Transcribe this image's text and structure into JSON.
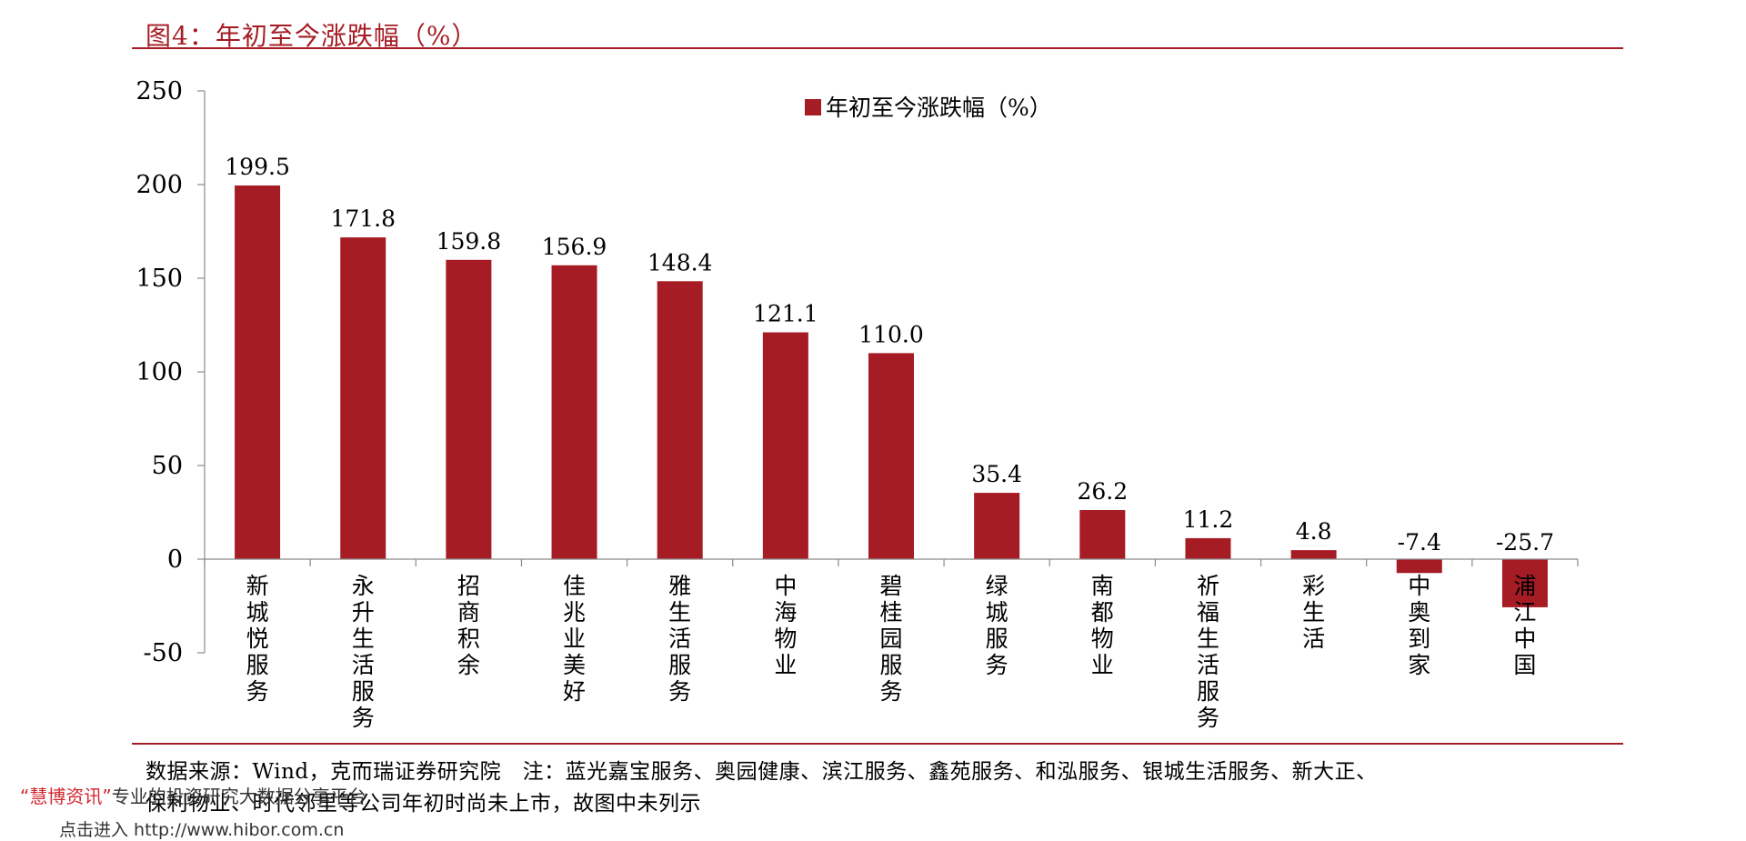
{
  "title": "图4：年初至今涨跌幅（%）",
  "accent_color": "#a51c24",
  "chart_data": {
    "type": "bar",
    "title": "图4：年初至今涨跌幅（%）",
    "legend": {
      "entries": [
        "年初至今涨跌幅（%）"
      ],
      "placement": "top-center"
    },
    "categories": [
      "新城悦服务",
      "永升生活服务",
      "招商积余",
      "佳兆业美好",
      "雅生活服务",
      "中海物业",
      "碧桂园服务",
      "绿城服务",
      "南都物业",
      "祈福生活服务",
      "彩生活",
      "中奥到家",
      "浦江中国"
    ],
    "series": [
      {
        "name": "年初至今涨跌幅（%）",
        "color": "#a51c24",
        "values": [
          199.5,
          171.8,
          159.8,
          156.9,
          148.4,
          121.1,
          110.0,
          35.4,
          26.2,
          11.2,
          4.8,
          -7.4,
          -25.7
        ]
      }
    ],
    "data_labels": [
      "199.5",
      "171.8",
      "159.8",
      "156.9",
      "148.4",
      "121.1",
      "110.0",
      "35.4",
      "26.2",
      "11.2",
      "4.8",
      "-7.4",
      "-25.7"
    ],
    "ylim": [
      -50,
      250
    ],
    "yticks": [
      -50,
      0,
      50,
      100,
      150,
      200,
      250
    ],
    "xlabel": "",
    "ylabel": "",
    "grid": false
  },
  "source_line1": "数据来源：Wind，克而瑞证券研究院　注：蓝光嘉宝服务、奥园健康、滨江服务、鑫苑服务、和泓服务、银城生活服务、新大正、",
  "source_line2": "保利物业、时代邻里等公司年初时尚未上市，故图中未列示",
  "watermark": {
    "brand": "“慧博资讯”",
    "text": "专业的投资研究大数据分享平台",
    "line2": "点击进入 http://www.hibor.com.cn"
  }
}
